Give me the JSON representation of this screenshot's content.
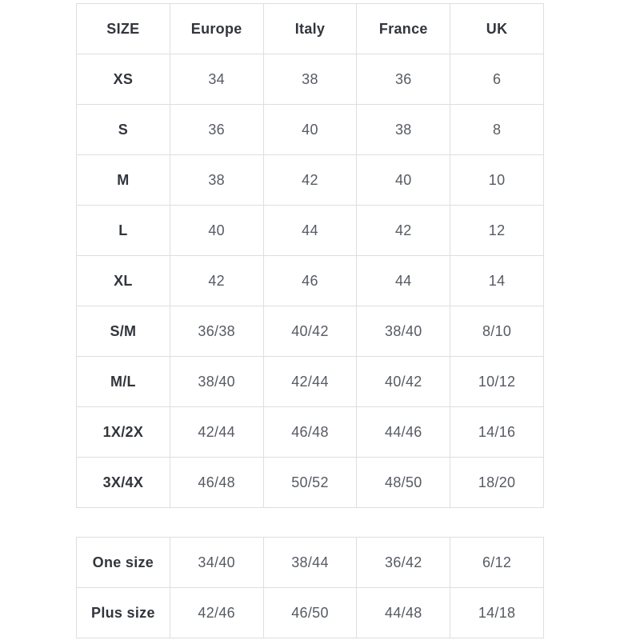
{
  "size_chart": {
    "columns": [
      "SIZE",
      "Europe",
      "Italy",
      "France",
      "UK"
    ],
    "main_table": {
      "rows": [
        {
          "label": "XS",
          "values": [
            "34",
            "38",
            "36",
            "6"
          ]
        },
        {
          "label": "S",
          "values": [
            "36",
            "40",
            "38",
            "8"
          ]
        },
        {
          "label": "M",
          "values": [
            "38",
            "42",
            "40",
            "10"
          ]
        },
        {
          "label": "L",
          "values": [
            "40",
            "44",
            "42",
            "12"
          ]
        },
        {
          "label": "XL",
          "values": [
            "42",
            "46",
            "44",
            "14"
          ]
        },
        {
          "label": "S/M",
          "values": [
            "36/38",
            "40/42",
            "38/40",
            "8/10"
          ]
        },
        {
          "label": "M/L",
          "values": [
            "38/40",
            "42/44",
            "40/42",
            "10/12"
          ]
        },
        {
          "label": "1X/2X",
          "values": [
            "42/44",
            "46/48",
            "44/46",
            "14/16"
          ]
        },
        {
          "label": "3X/4X",
          "values": [
            "46/48",
            "50/52",
            "48/50",
            "18/20"
          ]
        }
      ]
    },
    "secondary_table": {
      "rows": [
        {
          "label": "One size",
          "values": [
            "34/40",
            "38/44",
            "36/42",
            "6/12"
          ]
        },
        {
          "label": "Plus size",
          "values": [
            "42/46",
            "46/50",
            "44/48",
            "14/18"
          ]
        }
      ]
    },
    "colors": {
      "label_text": "#31353c",
      "value_text": "#565b63",
      "border_inner": "#dedede",
      "border_outer": "#cfcfcf"
    }
  }
}
